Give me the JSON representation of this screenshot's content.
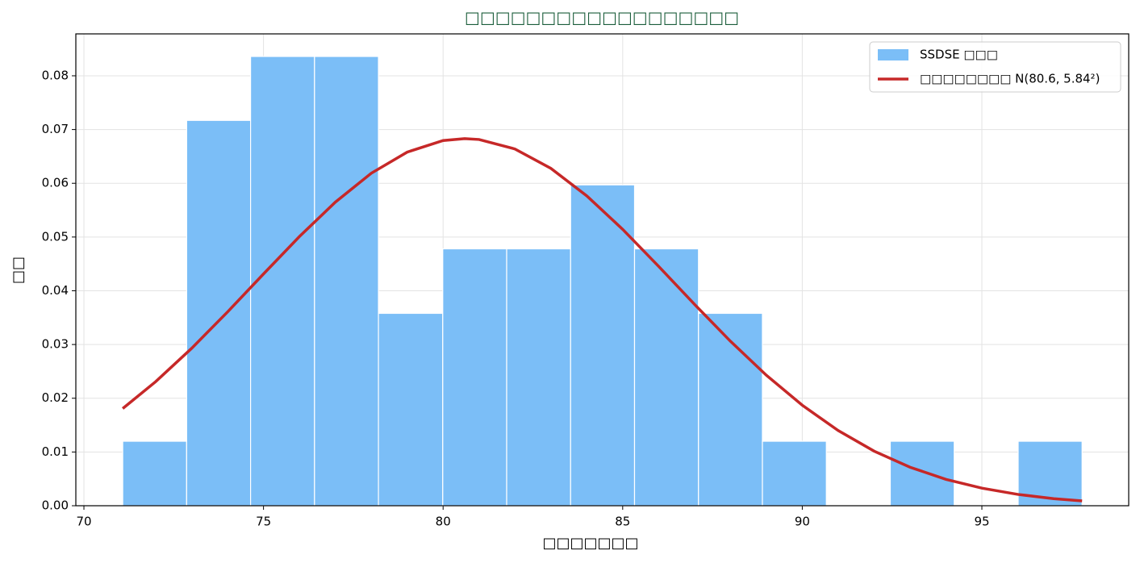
{
  "chart_data": {
    "type": "histogram",
    "title": "□□□□□□□□□□□□□□□□□□",
    "x_label": "□□□□□□□",
    "y_label": "□□",
    "xlim": [
      69.775,
      99.088
    ],
    "ylim": [
      0,
      0.0878
    ],
    "xticks": [
      70,
      75,
      80,
      85,
      90,
      95
    ],
    "yticks": [
      {
        "value": 0,
        "label": "0.00"
      },
      {
        "value": 0.01,
        "label": "0.01"
      },
      {
        "value": 0.02,
        "label": "0.02"
      },
      {
        "value": 0.03,
        "label": "0.03"
      },
      {
        "value": 0.04,
        "label": "0.04"
      },
      {
        "value": 0.05,
        "label": "0.05"
      },
      {
        "value": 0.06,
        "label": "0.06"
      },
      {
        "value": 0.07,
        "label": "0.07"
      },
      {
        "value": 0.08,
        "label": "0.08"
      }
    ],
    "grid": true,
    "legend": "upper right",
    "series": [
      {
        "type": "histogram",
        "name": "SSDSE □□□",
        "color": "#7bbef7",
        "bins": [
          71.08,
          72.86,
          74.64,
          76.42,
          78.2,
          79.99,
          81.77,
          83.55,
          85.33,
          87.11,
          88.89,
          90.67,
          92.45,
          94.23,
          96.01,
          97.79
        ],
        "values": [
          0.012,
          0.0717,
          0.0836,
          0.0836,
          0.0358,
          0.0478,
          0.0478,
          0.0597,
          0.0478,
          0.0358,
          0.012,
          0,
          0.012,
          0,
          0.012
        ]
      },
      {
        "type": "line",
        "name": "□□□□□□□□ N(80.6, 5.84²)",
        "color": "#c62828",
        "x": [
          71.08,
          72,
          73,
          74,
          75,
          76,
          77,
          78,
          79,
          80,
          80.6,
          81,
          82,
          83,
          84,
          85,
          86,
          87,
          88,
          89,
          90,
          91,
          92,
          93,
          94,
          95,
          96,
          97,
          97.79
        ],
        "values": [
          0.01809,
          0.0231,
          0.02929,
          0.03607,
          0.04313,
          0.05009,
          0.05649,
          0.06187,
          0.0658,
          0.06795,
          0.06831,
          0.06815,
          0.06638,
          0.06278,
          0.05766,
          0.05143,
          0.04455,
          0.03747,
          0.03061,
          0.02428,
          0.0187,
          0.01399,
          0.01016,
          0.00717,
          0.00491,
          0.00327,
          0.00211,
          0.00132,
          0.0009
        ]
      }
    ]
  }
}
